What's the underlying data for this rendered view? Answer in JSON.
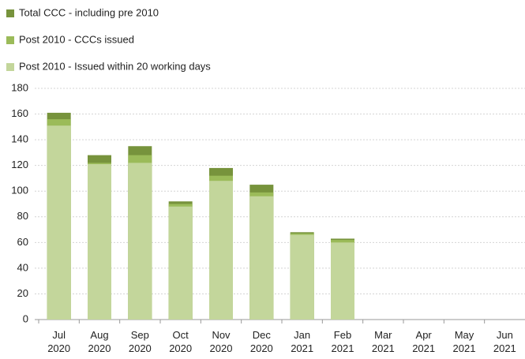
{
  "chart_data": {
    "type": "bar",
    "overlap": true,
    "categories": [
      "Jul 2020",
      "Aug 2020",
      "Sep 2020",
      "Oct 2020",
      "Nov 2020",
      "Dec 2020",
      "Jan 2021",
      "Feb 2021",
      "Mar 2021",
      "Apr 2021",
      "May 2021",
      "Jun 2021"
    ],
    "series": [
      {
        "name": "Total CCC - including pre 2010",
        "color": "#77933c",
        "values": [
          161,
          128,
          135,
          92,
          118,
          105,
          68,
          63,
          null,
          null,
          null,
          null
        ]
      },
      {
        "name": "Post 2010 - CCCs issued",
        "color": "#9bbb59",
        "values": [
          156,
          122,
          128,
          90,
          112,
          99,
          67,
          62,
          null,
          null,
          null,
          null
        ]
      },
      {
        "name": "Post 2010 - Issued within 20 working days",
        "color": "#c3d69b",
        "values": [
          151,
          121,
          122,
          88,
          108,
          96,
          66,
          60,
          null,
          null,
          null,
          null
        ]
      }
    ],
    "ylim": [
      0,
      180
    ],
    "yticks": [
      0,
      20,
      40,
      60,
      80,
      100,
      120,
      140,
      160,
      180
    ],
    "grid": true,
    "legend": "top-left"
  }
}
